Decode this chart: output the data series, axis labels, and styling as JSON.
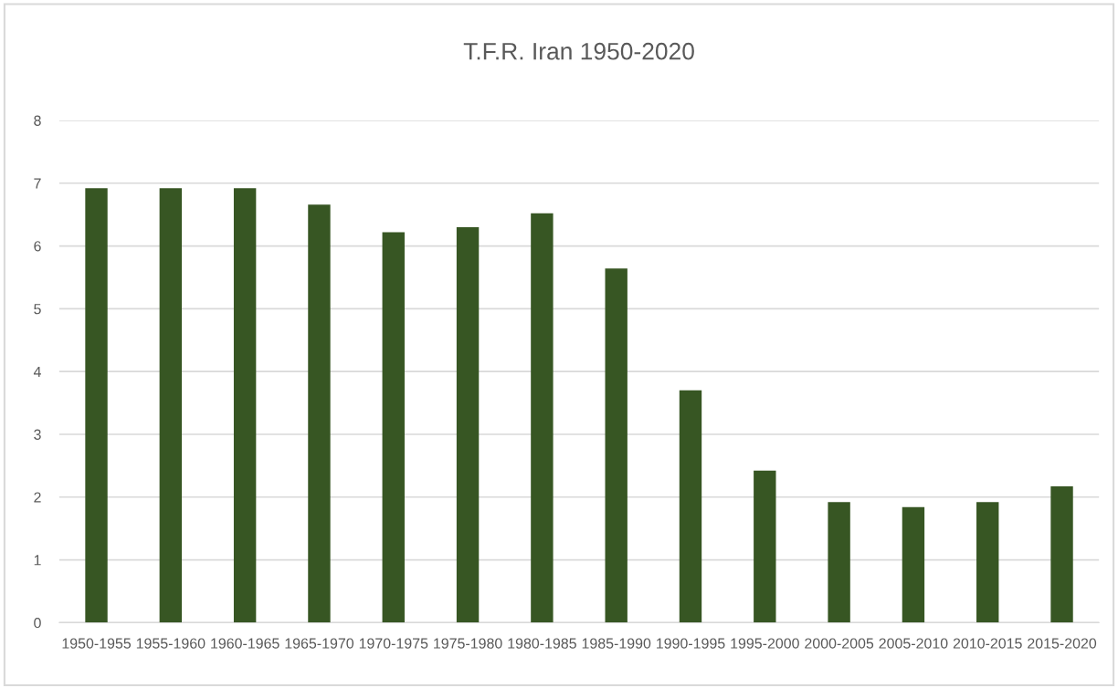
{
  "chart_data": {
    "type": "bar",
    "title": "T.F.R. Iran 1950-2020",
    "categories": [
      "1950-1955",
      "1955-1960",
      "1960-1965",
      "1965-1970",
      "1970-1975",
      "1975-1980",
      "1980-1985",
      "1985-1990",
      "1990-1995",
      "1995-2000",
      "2000-2005",
      "2005-2010",
      "2010-2015",
      "2015-2020"
    ],
    "values": [
      6.92,
      6.92,
      6.92,
      6.66,
      6.22,
      6.3,
      6.52,
      5.64,
      3.7,
      2.42,
      1.92,
      1.84,
      1.92,
      2.17
    ],
    "color": "#375623",
    "ylim": [
      0,
      8
    ],
    "yticks": [
      0,
      1,
      2,
      3,
      4,
      5,
      6,
      7,
      8
    ],
    "grid": "y"
  }
}
